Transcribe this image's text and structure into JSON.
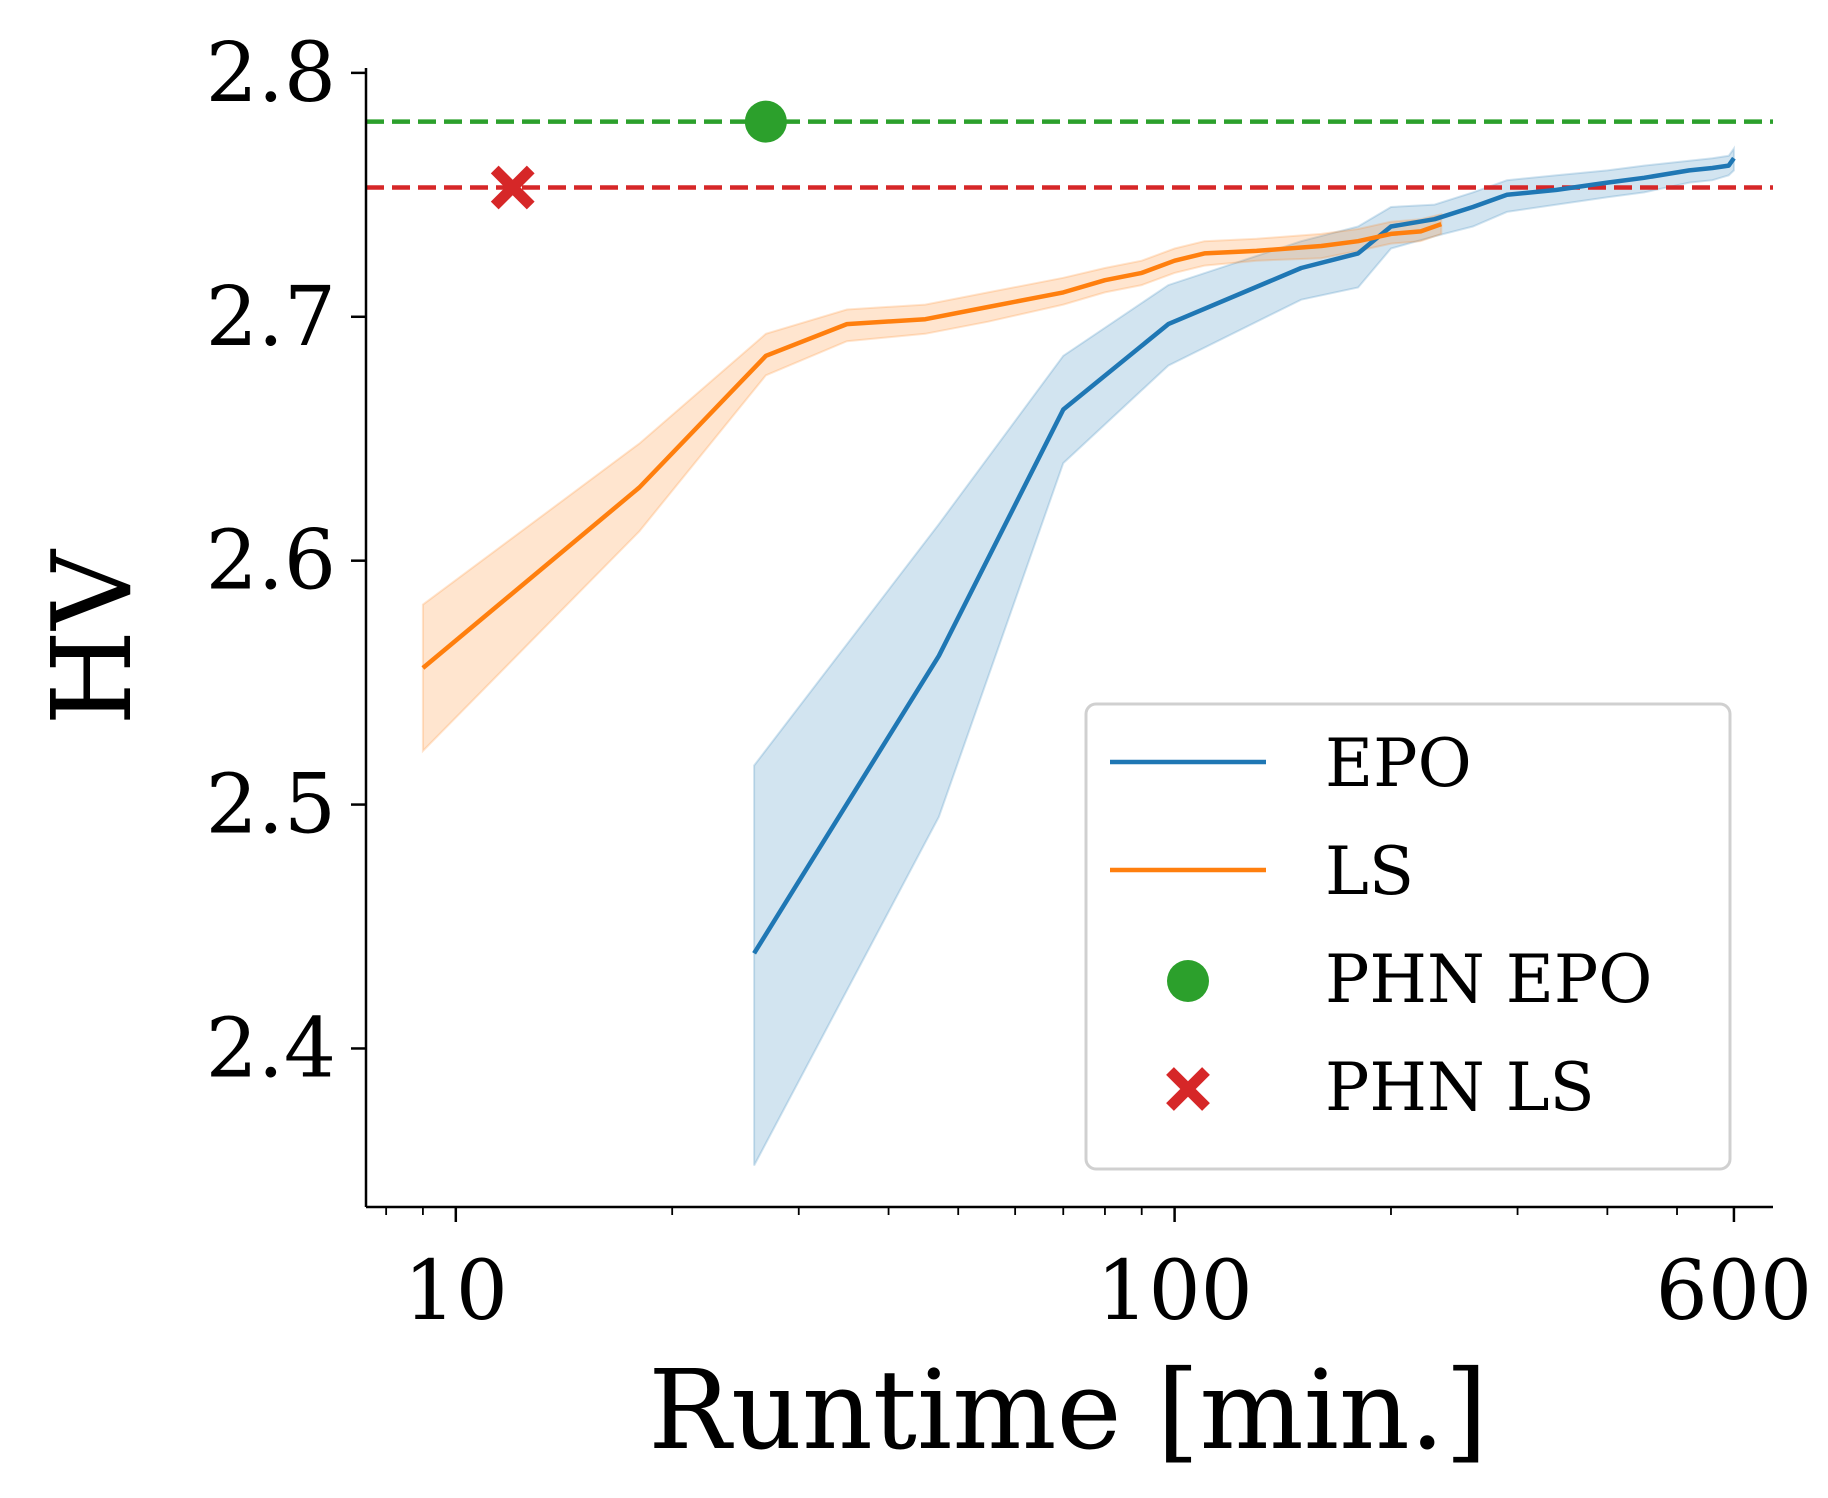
{
  "chart_data": {
    "type": "line",
    "xlabel": "Runtime [min.]",
    "ylabel": "HV",
    "xscale": "log",
    "xlim": [
      7.5,
      680
    ],
    "ylim": [
      2.335,
      2.802
    ],
    "x_ticks": [
      10,
      100,
      600
    ],
    "x_tick_labels": [
      "10",
      "100",
      "600"
    ],
    "y_ticks": [
      2.4,
      2.5,
      2.6,
      2.7,
      2.8
    ],
    "y_tick_labels": [
      "2.4",
      "2.5",
      "2.6",
      "2.7",
      "2.8"
    ],
    "grid": false,
    "legend_position": "lower-right",
    "series": [
      {
        "name": "EPO",
        "kind": "line_with_band",
        "color": "#1f77b4",
        "x": [
          26,
          47,
          70,
          98,
          150,
          180,
          200,
          230,
          260,
          290,
          340,
          400,
          450,
          520,
          560,
          590,
          600
        ],
        "y": [
          2.439,
          2.561,
          2.662,
          2.697,
          2.72,
          2.726,
          2.737,
          2.74,
          2.745,
          2.75,
          2.752,
          2.755,
          2.757,
          2.76,
          2.761,
          2.762,
          2.765
        ],
        "lower": [
          2.352,
          2.495,
          2.64,
          2.68,
          2.707,
          2.712,
          2.728,
          2.733,
          2.737,
          2.743,
          2.746,
          2.749,
          2.751,
          2.755,
          2.756,
          2.758,
          2.76
        ],
        "upper": [
          2.516,
          2.615,
          2.684,
          2.713,
          2.731,
          2.737,
          2.745,
          2.746,
          2.751,
          2.756,
          2.758,
          2.76,
          2.762,
          2.764,
          2.765,
          2.766,
          2.769
        ]
      },
      {
        "name": "LS",
        "kind": "line_with_band",
        "color": "#ff7f0e",
        "x": [
          9,
          18,
          27,
          35,
          45,
          55,
          70,
          80,
          90,
          100,
          110,
          130,
          160,
          180,
          200,
          220,
          235
        ],
        "y": [
          2.556,
          2.63,
          2.684,
          2.697,
          2.699,
          2.704,
          2.71,
          2.715,
          2.718,
          2.723,
          2.726,
          2.727,
          2.729,
          2.731,
          2.734,
          2.735,
          2.738
        ],
        "lower": [
          2.522,
          2.612,
          2.676,
          2.69,
          2.693,
          2.698,
          2.705,
          2.71,
          2.713,
          2.718,
          2.721,
          2.723,
          2.724,
          2.727,
          2.73,
          2.731,
          2.734
        ],
        "upper": [
          2.582,
          2.648,
          2.693,
          2.703,
          2.705,
          2.71,
          2.716,
          2.72,
          2.723,
          2.728,
          2.731,
          2.732,
          2.734,
          2.736,
          2.739,
          2.74,
          2.742
        ]
      },
      {
        "name": "PHN EPO",
        "kind": "marker",
        "marker": "circle",
        "color": "#2ca02c",
        "x": [
          27
        ],
        "y": [
          2.78
        ],
        "hline": 2.78
      },
      {
        "name": "PHN LS",
        "kind": "marker",
        "marker": "x",
        "color": "#d62728",
        "x": [
          12
        ],
        "y": [
          2.753
        ],
        "hline": 2.753
      }
    ]
  }
}
